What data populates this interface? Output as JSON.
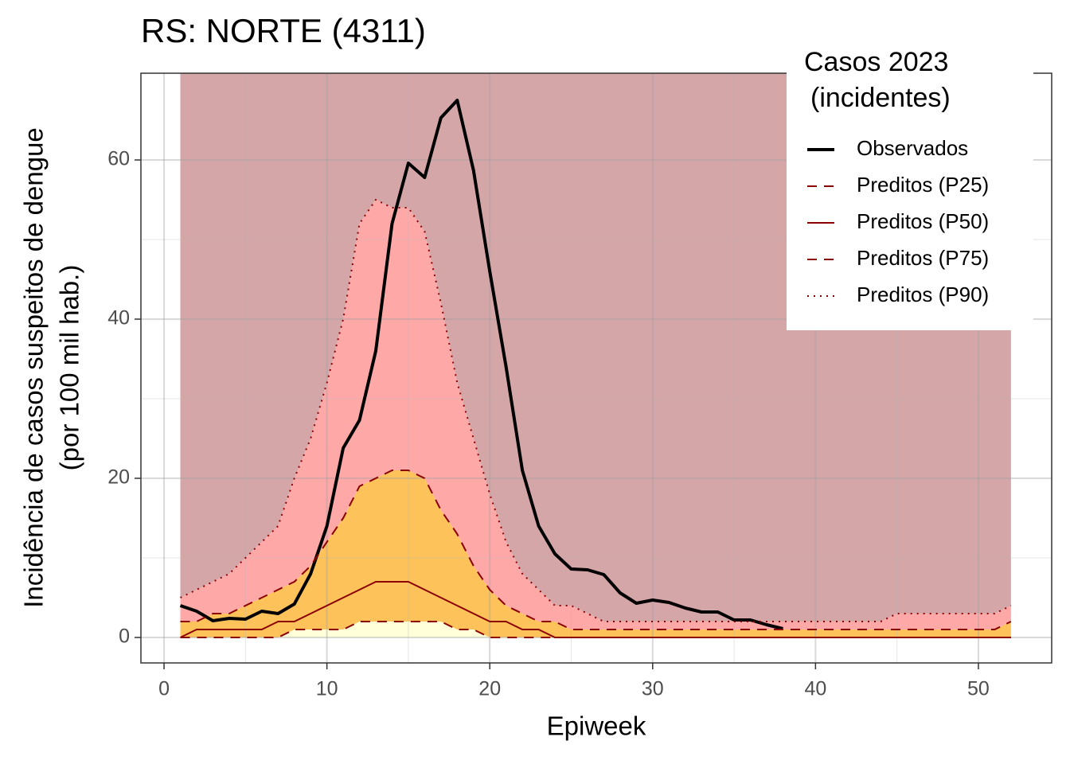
{
  "chart_data": {
    "type": "line",
    "title": "RS: NORTE (4311)",
    "xlabel": "Epiweek",
    "ylabel": [
      "Incidência de casos suspeitos de dengue",
      "(por 100 mil hab.)"
    ],
    "legend_title": [
      "Casos 2023",
      "(incidentes)"
    ],
    "legend_position": "top-right",
    "grid": true,
    "xlim": [
      -1.42,
      54.5
    ],
    "ylim": [
      -3.2,
      70.9
    ],
    "xticks": [
      0,
      10,
      20,
      30,
      40,
      50
    ],
    "yticks": [
      0,
      20,
      40,
      60
    ],
    "band_colors": [
      "#ffffd9",
      "#fdc35a",
      "#ffa8a8",
      "#d5a6a8"
    ],
    "x": [
      1,
      2,
      3,
      4,
      5,
      6,
      7,
      8,
      9,
      10,
      11,
      12,
      13,
      14,
      15,
      16,
      17,
      18,
      19,
      20,
      21,
      22,
      23,
      24,
      25,
      26,
      27,
      28,
      29,
      30,
      31,
      32,
      33,
      34,
      35,
      36,
      37,
      38,
      39,
      40,
      41,
      42,
      43,
      44,
      45,
      46,
      47,
      48,
      49,
      50,
      51,
      52
    ],
    "series": [
      {
        "name": "Observados",
        "color": "#000000",
        "dash": "solid",
        "width": 4,
        "values": [
          4.0,
          3.3,
          2.1,
          2.4,
          2.3,
          3.3,
          3.0,
          4.2,
          8,
          14,
          23.8,
          27.3,
          36,
          52,
          59.6,
          57.8,
          65.3,
          67.5,
          58.7,
          46,
          34,
          21,
          14,
          10.5,
          8.6,
          8.5,
          7.9,
          5.6,
          4.3,
          4.7,
          4.4,
          3.7,
          3.2,
          3.2,
          2.2,
          2.2,
          1.6,
          1.1,
          null,
          null,
          null,
          null,
          null,
          null,
          null,
          null,
          null,
          null,
          null,
          null,
          null,
          null
        ]
      },
      {
        "name": "Preditos (P25)",
        "color": "#8b0000",
        "dash": "dashed",
        "width": 2,
        "values": [
          0,
          0,
          0,
          0,
          0,
          0,
          0,
          1,
          1,
          1,
          1,
          2,
          2,
          2,
          2,
          2,
          2,
          1,
          1,
          0,
          0,
          0,
          0,
          0,
          0,
          0,
          0,
          0,
          0,
          0,
          0,
          0,
          0,
          0,
          0,
          0,
          0,
          0,
          0,
          0,
          0,
          0,
          0,
          0,
          0,
          0,
          0,
          0,
          0,
          0,
          0,
          0
        ]
      },
      {
        "name": "Preditos (P50)",
        "color": "#8b0000",
        "dash": "solid",
        "width": 2,
        "values": [
          0,
          1,
          1,
          1,
          1,
          1,
          2,
          2,
          3,
          4,
          5,
          6,
          7,
          7,
          7,
          6,
          5,
          4,
          3,
          2,
          2,
          1,
          1,
          0,
          0,
          0,
          0,
          0,
          0,
          0,
          0,
          0,
          0,
          0,
          0,
          0,
          0,
          0,
          0,
          0,
          0,
          0,
          0,
          0,
          0,
          0,
          0,
          0,
          0,
          0,
          0,
          0
        ]
      },
      {
        "name": "Preditos (P75)",
        "color": "#8b0000",
        "dash": "dashed",
        "width": 2,
        "values": [
          2,
          2,
          3,
          3,
          4,
          5,
          6,
          7,
          9,
          12,
          15,
          19,
          20,
          21,
          21,
          20,
          16,
          13,
          9,
          6,
          4,
          3,
          2,
          2,
          1,
          1,
          1,
          1,
          1,
          1,
          1,
          1,
          1,
          1,
          1,
          1,
          1,
          1,
          1,
          1,
          1,
          1,
          1,
          1,
          1,
          1,
          1,
          1,
          1,
          1,
          1,
          2
        ]
      },
      {
        "name": "Preditos (P90)",
        "color": "#8b0000",
        "dash": "dotted",
        "width": 2,
        "values": [
          5,
          6,
          7,
          8,
          10,
          12,
          14,
          20,
          25,
          32,
          40,
          52,
          55,
          54,
          54,
          51,
          42,
          32,
          25,
          18,
          12,
          8,
          6,
          4,
          4,
          3,
          2,
          2,
          2,
          2,
          2,
          2,
          2,
          2,
          2,
          2,
          2,
          2,
          2,
          2,
          2,
          2,
          2,
          2,
          3,
          3,
          3,
          3,
          3,
          3,
          3,
          4
        ]
      }
    ]
  }
}
